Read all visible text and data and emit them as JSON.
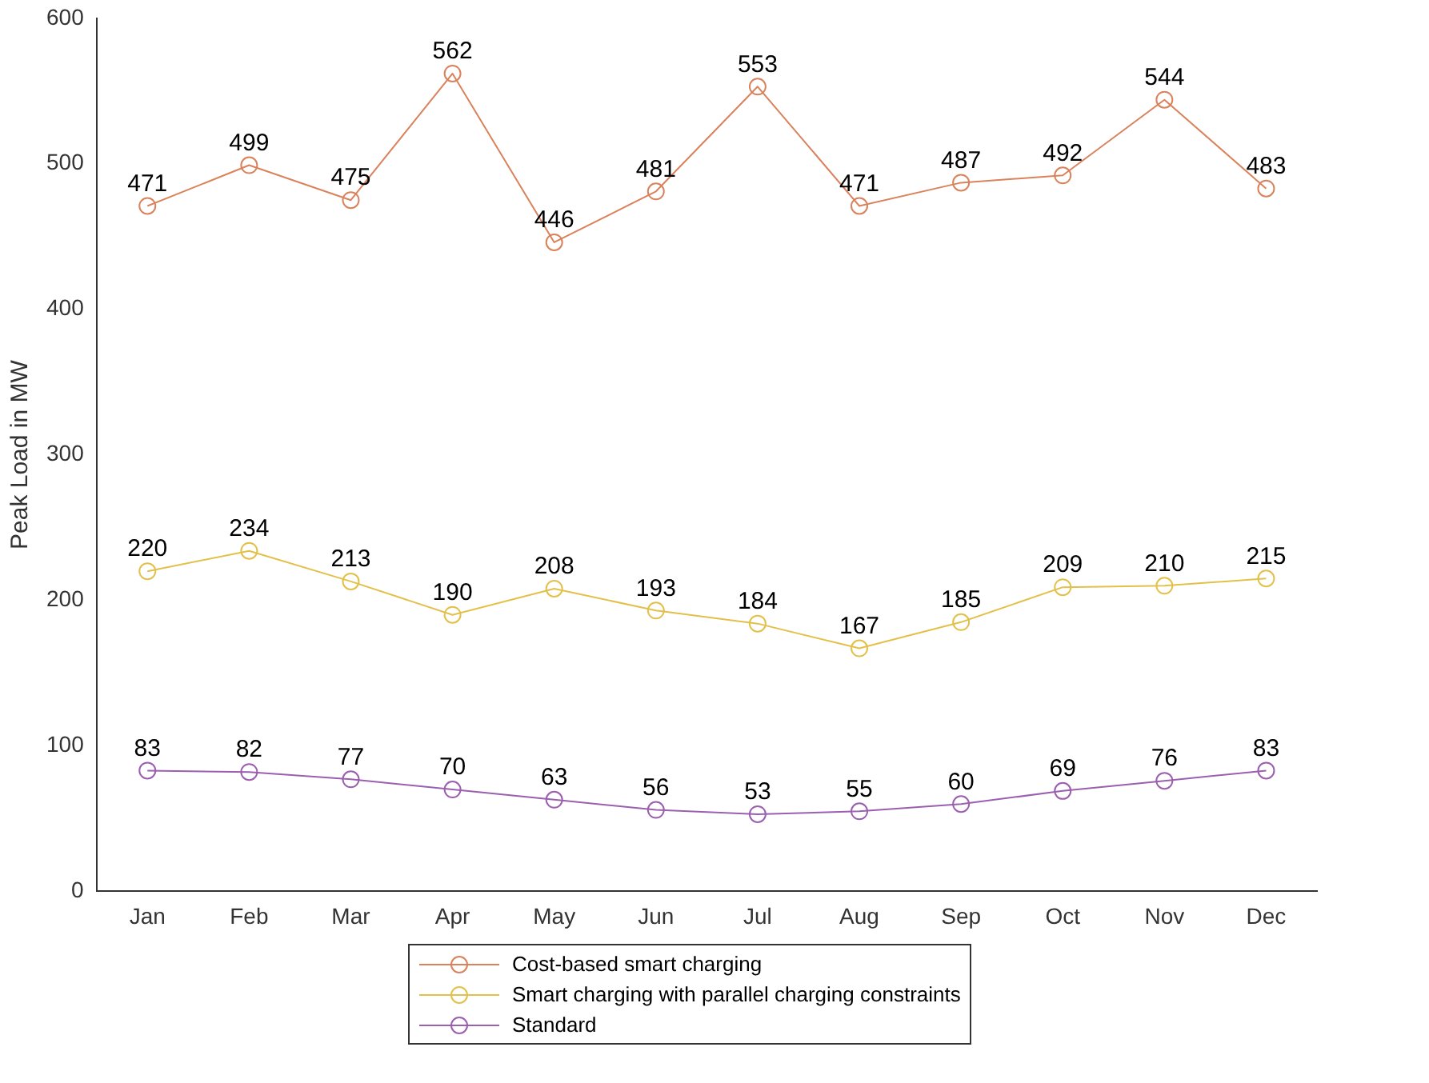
{
  "chart_data": {
    "type": "line",
    "ylabel": "Peak Load in MW",
    "categories": [
      "Jan",
      "Feb",
      "Mar",
      "Apr",
      "May",
      "Jun",
      "Jul",
      "Aug",
      "Sep",
      "Oct",
      "Nov",
      "Dec"
    ],
    "series": [
      {
        "name": "Cost-based smart charging",
        "color": "#d9825b",
        "values": [
          471,
          499,
          475,
          562,
          446,
          481,
          553,
          471,
          487,
          492,
          544,
          483
        ]
      },
      {
        "name": "Smart charging with parallel charging constraints",
        "color": "#e3c04a",
        "values": [
          220,
          234,
          213,
          190,
          208,
          193,
          184,
          167,
          185,
          209,
          210,
          215
        ]
      },
      {
        "name": "Standard",
        "color": "#9b5fb0",
        "values": [
          83,
          82,
          77,
          70,
          63,
          56,
          53,
          55,
          60,
          69,
          76,
          83
        ]
      }
    ],
    "ylim": [
      0,
      600
    ],
    "yticks": [
      0,
      100,
      200,
      300,
      400,
      500,
      600
    ],
    "grid": false,
    "legend": "bottom",
    "marker": "circle",
    "line_style": "solid",
    "data_labels": true
  }
}
